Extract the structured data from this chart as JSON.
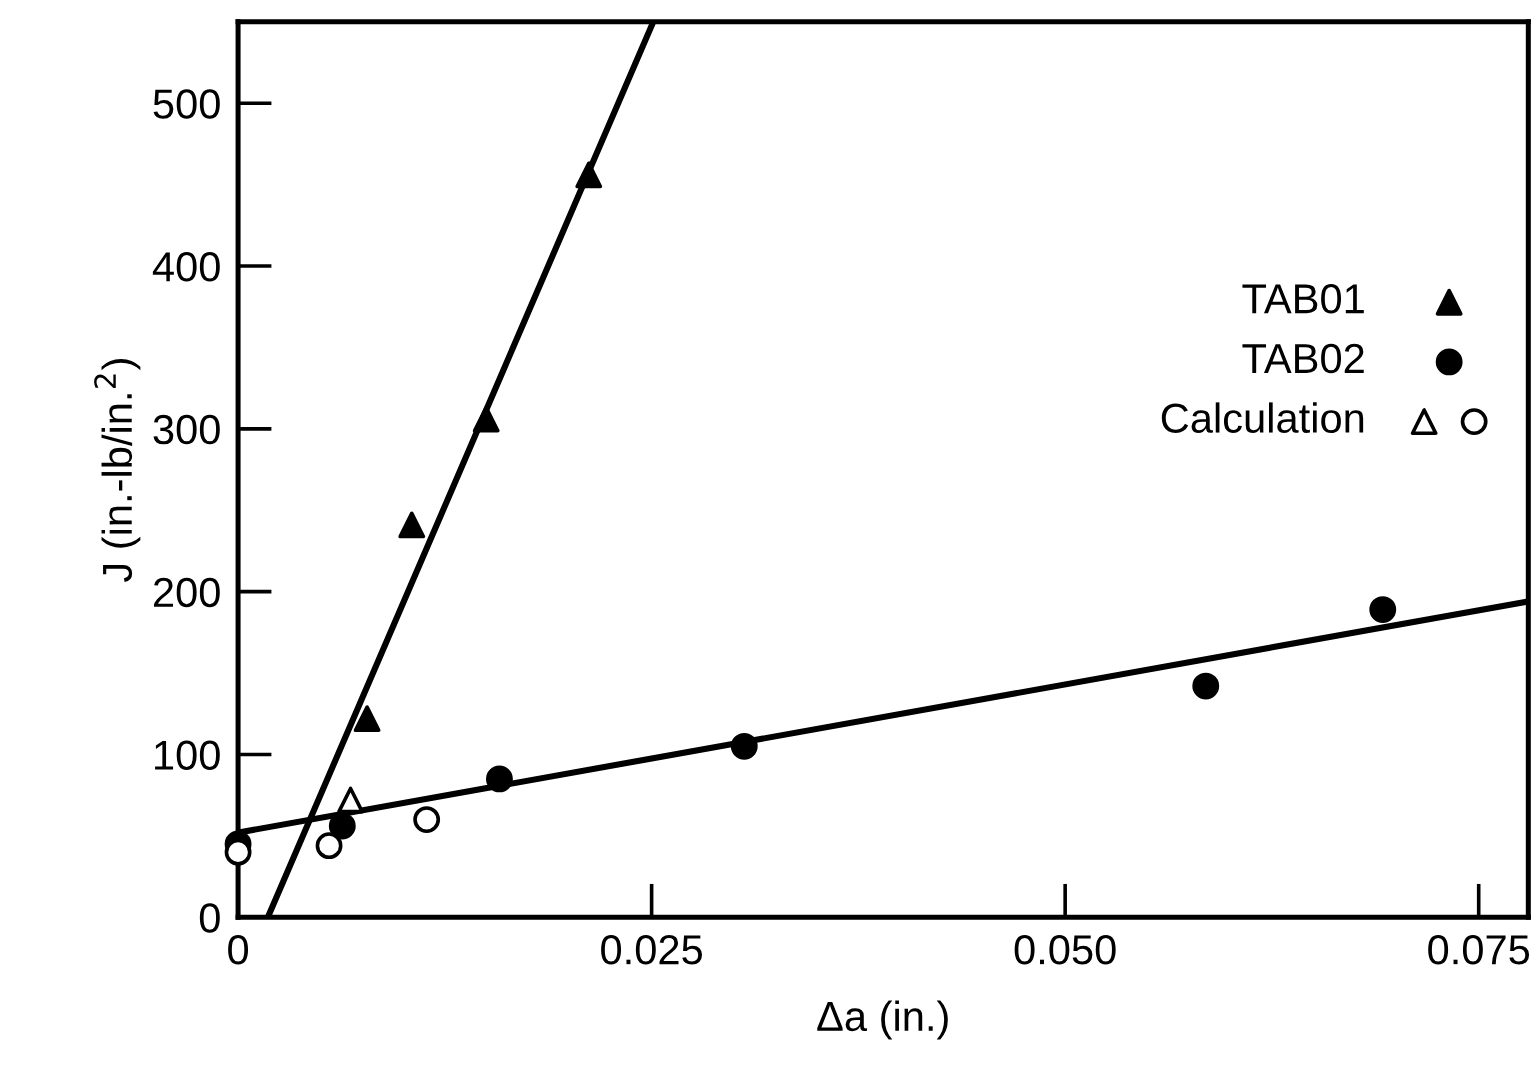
{
  "chart_data": {
    "type": "scatter",
    "xlabel": "Δa (in.)",
    "ylabel": "J (in.-lb/in.$^{2}$)",
    "xlim": [
      0,
      0.078
    ],
    "ylim": [
      0,
      550
    ],
    "xticks": [
      {
        "value": 0,
        "label": "0"
      },
      0.025,
      {
        "value": 0.05,
        "label": "0.050"
      },
      0.075
    ],
    "yticks": [
      0,
      100,
      200,
      300,
      400,
      500
    ],
    "grid": false,
    "legend": "right",
    "series": [
      {
        "type": "line",
        "color": "#000000",
        "marker": "none",
        "line_style": "solid",
        "x": [
          0.0018,
          0.0251
        ],
        "values": [
          0,
          550
        ]
      },
      {
        "type": "line",
        "color": "#000000",
        "marker": "none",
        "line_style": "solid",
        "x": [
          0,
          0.078
        ],
        "values": [
          52,
          194
        ]
      },
      {
        "name": "TAB01",
        "color": "#000000",
        "marker": "triangle",
        "x": [
          0.0078,
          0.0105,
          0.015,
          0.0212
        ],
        "values": [
          122,
          241,
          306,
          456
        ]
      },
      {
        "name": "TAB02",
        "color": "#000000",
        "marker": "circle",
        "x": [
          0,
          0.0063,
          0.0158,
          0.0306,
          0.0585,
          0.0692
        ],
        "values": [
          45,
          56,
          85,
          105,
          142,
          189
        ]
      },
      {
        "name": "Calculation",
        "color": "#ffffff",
        "marker": "triangle",
        "x": [
          0.0068
        ],
        "values": [
          72
        ]
      },
      {
        "color": "#ffffff",
        "marker": "circle",
        "x": [
          0,
          0.0055,
          0.0114
        ],
        "values": [
          40,
          44,
          60
        ]
      }
    ]
  }
}
